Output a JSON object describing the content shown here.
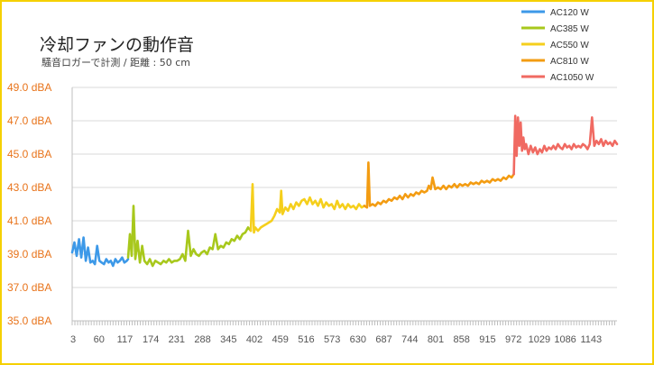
{
  "chart_data": {
    "type": "line",
    "title": "冷却ファンの動作音",
    "subtitle": "騒音ロガーで計測 / 距離 : 50 cm",
    "y_unit": "dBA",
    "ylim": [
      35.0,
      49.0
    ],
    "y_ticks": [
      "35.0 dBA",
      "37.0 dBA",
      "39.0 dBA",
      "41.0 dBA",
      "43.0 dBA",
      "45.0 dBA",
      "47.0 dBA",
      "49.0 dBA"
    ],
    "x_range": [
      1,
      1200
    ],
    "x_tick_labels": [
      "3",
      "60",
      "117",
      "174",
      "231",
      "288",
      "345",
      "402",
      "459",
      "516",
      "573",
      "630",
      "687",
      "744",
      "801",
      "858",
      "915",
      "972",
      "1029",
      "1086",
      "1143"
    ],
    "grid": "horizontal",
    "legend_position": "top-right",
    "series": [
      {
        "name": "AC120 W",
        "color": "#3d99e8",
        "x": [
          1,
          6,
          11,
          16,
          21,
          26,
          31,
          36,
          41,
          46,
          51,
          56,
          61,
          66,
          71,
          76,
          81,
          86,
          91,
          96,
          101,
          106,
          111,
          116,
          121,
          124
        ],
        "y": [
          39.1,
          39.7,
          38.9,
          39.9,
          38.8,
          40.0,
          38.6,
          39.4,
          38.5,
          38.6,
          38.4,
          39.5,
          38.6,
          38.5,
          38.4,
          38.7,
          38.5,
          38.6,
          38.3,
          38.7,
          38.5,
          38.6,
          38.8,
          38.5,
          38.6,
          38.7
        ]
      },
      {
        "name": "AC385 W",
        "color": "#a8c81c",
        "x": [
          124,
          128,
          132,
          136,
          140,
          145,
          150,
          155,
          160,
          166,
          172,
          178,
          184,
          190,
          196,
          202,
          208,
          214,
          220,
          226,
          232,
          238,
          244,
          250,
          256,
          262,
          268,
          274,
          280,
          286,
          292,
          298,
          304,
          310,
          316,
          322,
          328,
          334,
          340,
          346,
          352,
          358,
          364,
          370,
          376,
          382,
          388,
          394
        ],
        "y": [
          38.8,
          40.2,
          38.9,
          41.9,
          38.7,
          39.8,
          38.5,
          39.5,
          38.6,
          38.4,
          38.7,
          38.3,
          38.6,
          38.5,
          38.4,
          38.6,
          38.5,
          38.7,
          38.5,
          38.6,
          38.6,
          38.7,
          39.0,
          38.6,
          40.4,
          38.9,
          39.3,
          39.0,
          38.9,
          39.1,
          39.2,
          39.0,
          39.4,
          39.3,
          40.2,
          39.3,
          39.5,
          39.4,
          39.7,
          39.6,
          39.9,
          39.8,
          40.1,
          39.9,
          40.2,
          40.3,
          40.6,
          40.4
        ]
      },
      {
        "name": "AC550 W",
        "color": "#f5cf1c",
        "x": [
          394,
          398,
          401,
          404,
          410,
          416,
          422,
          428,
          434,
          440,
          446,
          452,
          458,
          461,
          464,
          470,
          476,
          482,
          488,
          494,
          500,
          506,
          512,
          518,
          524,
          530,
          536,
          542,
          548,
          554,
          560,
          566,
          572,
          578,
          584,
          590,
          596,
          602,
          608,
          614,
          620,
          626,
          632,
          638,
          644
        ],
        "y": [
          40.4,
          43.2,
          40.3,
          40.6,
          40.4,
          40.6,
          40.7,
          40.8,
          40.9,
          41.0,
          41.3,
          41.7,
          41.5,
          42.8,
          41.4,
          41.8,
          41.6,
          42.0,
          41.7,
          42.1,
          41.9,
          42.2,
          42.3,
          42.0,
          42.4,
          42.0,
          42.2,
          41.9,
          42.3,
          41.8,
          42.1,
          41.9,
          42.0,
          41.7,
          42.2,
          41.8,
          42.0,
          41.7,
          42.0,
          41.8,
          41.9,
          41.7,
          42.0,
          41.8,
          41.9
        ]
      },
      {
        "name": "AC810 W",
        "color": "#f39c12",
        "x": [
          644,
          650,
          653,
          656,
          662,
          668,
          674,
          680,
          686,
          692,
          698,
          704,
          710,
          716,
          722,
          728,
          734,
          740,
          746,
          752,
          758,
          764,
          770,
          776,
          782,
          786,
          790,
          794,
          800,
          806,
          812,
          818,
          824,
          830,
          836,
          842,
          848,
          854,
          860,
          866,
          872,
          878,
          884,
          890,
          896,
          902,
          908,
          914,
          920,
          926,
          932,
          938,
          944,
          950,
          956,
          962,
          968,
          973
        ],
        "y": [
          41.9,
          41.8,
          44.5,
          41.9,
          42.0,
          41.9,
          42.1,
          42.0,
          42.2,
          42.1,
          42.3,
          42.2,
          42.4,
          42.3,
          42.5,
          42.3,
          42.6,
          42.4,
          42.6,
          42.5,
          42.7,
          42.6,
          42.8,
          42.7,
          42.8,
          43.1,
          42.9,
          43.6,
          42.9,
          43.0,
          42.9,
          43.1,
          42.9,
          43.1,
          43.0,
          43.2,
          43.0,
          43.2,
          43.1,
          43.2,
          43.1,
          43.3,
          43.2,
          43.3,
          43.2,
          43.4,
          43.3,
          43.4,
          43.3,
          43.5,
          43.4,
          43.5,
          43.4,
          43.6,
          43.5,
          43.7,
          43.6,
          43.8
        ]
      },
      {
        "name": "AC1050 W",
        "color": "#f06a62",
        "x": [
          973,
          976,
          979,
          982,
          985,
          988,
          991,
          994,
          997,
          1000,
          1005,
          1010,
          1015,
          1020,
          1025,
          1030,
          1035,
          1040,
          1045,
          1050,
          1055,
          1060,
          1065,
          1070,
          1075,
          1080,
          1085,
          1090,
          1095,
          1100,
          1105,
          1110,
          1115,
          1120,
          1125,
          1130,
          1135,
          1140,
          1145,
          1150,
          1155,
          1160,
          1165,
          1170,
          1175,
          1180,
          1185,
          1190,
          1195,
          1200
        ],
        "y": [
          43.8,
          47.3,
          44.9,
          47.2,
          45.5,
          46.9,
          45.2,
          46.0,
          45.3,
          45.6,
          45.0,
          45.5,
          45.1,
          45.4,
          45.0,
          45.3,
          45.1,
          45.5,
          45.2,
          45.4,
          45.3,
          45.5,
          45.3,
          45.6,
          45.4,
          45.3,
          45.6,
          45.4,
          45.5,
          45.3,
          45.6,
          45.4,
          45.5,
          45.4,
          45.6,
          45.5,
          45.3,
          45.6,
          47.2,
          45.5,
          45.8,
          45.6,
          45.9,
          45.5,
          45.8,
          45.6,
          45.7,
          45.5,
          45.8,
          45.6
        ]
      }
    ]
  }
}
